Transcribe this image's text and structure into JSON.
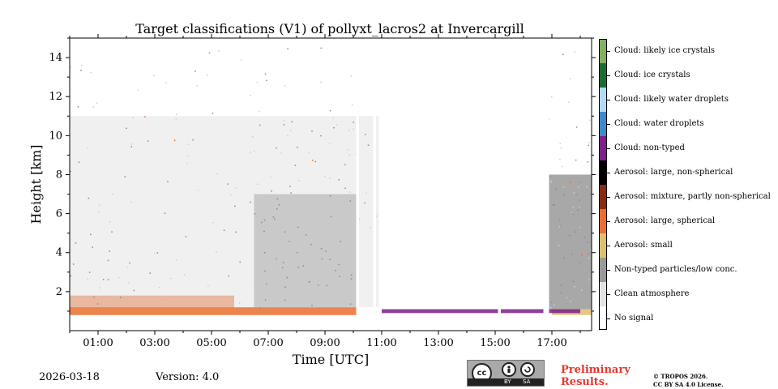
{
  "chart_data": {
    "type": "heatmap",
    "title": "Target classifications (V1) of pollyxt_lacros2 at Invercargill",
    "xlabel": "Time [UTC]",
    "ylabel": "Height [km]",
    "xlim_hours": [
      0,
      18.4
    ],
    "ylim_km": [
      0,
      15
    ],
    "x_ticks": [
      {
        "hour": 1,
        "label": "01:00"
      },
      {
        "hour": 3,
        "label": "03:00"
      },
      {
        "hour": 5,
        "label": "05:00"
      },
      {
        "hour": 7,
        "label": "07:00"
      },
      {
        "hour": 9,
        "label": "09:00"
      },
      {
        "hour": 11,
        "label": "11:00"
      },
      {
        "hour": 13,
        "label": "13:00"
      },
      {
        "hour": 15,
        "label": "15:00"
      },
      {
        "hour": 17,
        "label": "17:00"
      }
    ],
    "y_ticks": [
      {
        "km": 2,
        "label": "2"
      },
      {
        "km": 4,
        "label": "4"
      },
      {
        "km": 6,
        "label": "6"
      },
      {
        "km": 8,
        "label": "8"
      },
      {
        "km": 10,
        "label": "10"
      },
      {
        "km": 12,
        "label": "12"
      },
      {
        "km": 14,
        "label": "14"
      }
    ],
    "classes": [
      {
        "label": "No signal",
        "color": "#ffffff"
      },
      {
        "label": "Clean atmosphere",
        "color": "#e3e3e3"
      },
      {
        "label": "Non-typed particles/low conc.",
        "color": "#999999"
      },
      {
        "label": "Aerosol: small",
        "color": "#ddc06e"
      },
      {
        "label": "Aerosol: large, spherical",
        "color": "#ea6e2e"
      },
      {
        "label": "Aerosol: mixture, partly non-spherical",
        "color": "#8a2a10"
      },
      {
        "label": "Aerosol: large, non-spherical",
        "color": "#000000"
      },
      {
        "label": "Cloud: non-typed",
        "color": "#7d1f89"
      },
      {
        "label": "Cloud: water droplets",
        "color": "#3d89c9"
      },
      {
        "label": "Cloud: likely water droplets",
        "color": "#b0daf6"
      },
      {
        "label": "Cloud: ice crystals",
        "color": "#176e30"
      },
      {
        "label": "Cloud: likely ice crystals",
        "color": "#84b062"
      }
    ],
    "regions": [
      {
        "class": "Aerosol: large, spherical",
        "t_start": 0,
        "t_end": 5.8,
        "h_bottom": 0.8,
        "h_top": 1.8
      },
      {
        "class": "Aerosol: large, spherical",
        "t_start": 5.8,
        "t_end": 10.2,
        "h_bottom": 0.8,
        "h_top": 1.2
      },
      {
        "class": "Aerosol: small",
        "t_start": 17.0,
        "t_end": 18.4,
        "h_bottom": 0.8,
        "h_top": 1.1
      },
      {
        "class": "Non-typed particles/low conc.",
        "t_start": 6.5,
        "t_end": 10.2,
        "h_bottom": 1.2,
        "h_top": 7.0
      },
      {
        "class": "Non-typed particles/low conc.",
        "t_start": 16.9,
        "t_end": 18.4,
        "h_bottom": 1.1,
        "h_top": 8.0
      },
      {
        "class": "Clean atmosphere",
        "t_start": 0,
        "t_end": 10.9,
        "h_bottom": 1.2,
        "h_top": 11.0
      },
      {
        "class": "Cloud: non-typed",
        "t_start": 11.0,
        "t_end": 18.0,
        "h_bottom": 0.9,
        "h_top": 1.1
      }
    ],
    "no_signal_gaps_hours": [
      [
        10.1,
        10.2
      ],
      [
        10.7,
        10.8
      ],
      [
        15.1,
        15.2
      ],
      [
        16.7,
        16.9
      ]
    ]
  },
  "footer": {
    "date": "2026-03-18",
    "version": "Version: 4.0",
    "preliminary": [
      "Preliminary",
      "Results."
    ],
    "license": [
      "© TROPOS 2026.",
      "CC BY SA 4.0 License."
    ],
    "cc_badge": {
      "cc": "cc",
      "by": "BY",
      "sa": "SA"
    }
  }
}
